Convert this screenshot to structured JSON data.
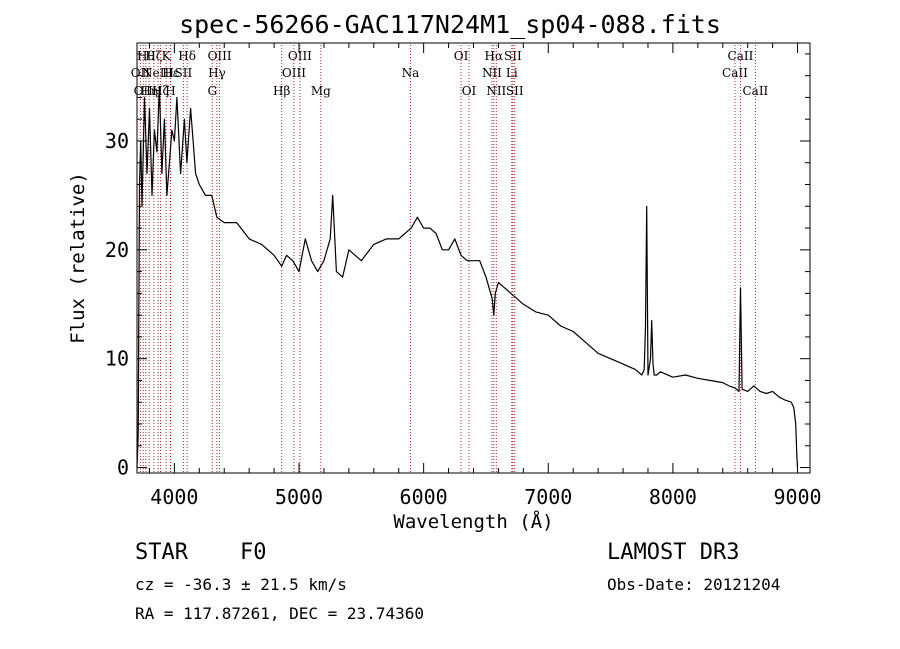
{
  "title": "spec-56266-GAC117N24M1_sp04-088.fits",
  "chart_data": {
    "type": "line",
    "title": "spec-56266-GAC117N24M1_sp04-088.fits",
    "xlabel": "Wavelength (Å)",
    "ylabel": "Flux (relative)",
    "xlim": [
      3700,
      9100
    ],
    "ylim": [
      -0.5,
      39
    ],
    "x_ticks": [
      4000,
      5000,
      6000,
      7000,
      8000,
      9000
    ],
    "y_ticks": [
      0,
      10,
      20,
      30
    ],
    "series": [
      {
        "name": "spectrum",
        "color": "#000000",
        "x": [
          3700,
          3710,
          3720,
          3730,
          3740,
          3760,
          3780,
          3800,
          3820,
          3840,
          3860,
          3880,
          3900,
          3920,
          3940,
          3960,
          3980,
          4000,
          4020,
          4050,
          4080,
          4100,
          4130,
          4170,
          4200,
          4250,
          4300,
          4340,
          4400,
          4500,
          4600,
          4700,
          4800,
          4861,
          4900,
          4950,
          5000,
          5050,
          5100,
          5150,
          5200,
          5250,
          5270,
          5300,
          5350,
          5400,
          5500,
          5600,
          5700,
          5800,
          5900,
          5950,
          6000,
          6050,
          6100,
          6150,
          6200,
          6250,
          6300,
          6350,
          6400,
          6450,
          6500,
          6550,
          6563,
          6575,
          6600,
          6650,
          6700,
          6750,
          6800,
          6900,
          7000,
          7100,
          7200,
          7300,
          7400,
          7500,
          7600,
          7700,
          7750,
          7770,
          7780,
          7790,
          7800,
          7820,
          7830,
          7840,
          7850,
          7870,
          7900,
          8000,
          8100,
          8200,
          8300,
          8400,
          8450,
          8500,
          8530,
          8542,
          8555,
          8600,
          8650,
          8700,
          8750,
          8800,
          8850,
          8900,
          8950,
          8970,
          8985,
          8995,
          9000
        ],
        "y": [
          0,
          3,
          26,
          30,
          24,
          34,
          27,
          33,
          25,
          31,
          29,
          35,
          27,
          32,
          25,
          28,
          31,
          30,
          34,
          27,
          32,
          28,
          33,
          27,
          26,
          25,
          25,
          23,
          22.5,
          22.5,
          21,
          20.5,
          19.5,
          18.5,
          19.5,
          19,
          18,
          21,
          19,
          18,
          19,
          21,
          25,
          18,
          17.5,
          20,
          19,
          20.5,
          21,
          21,
          22,
          23,
          22,
          22,
          21.5,
          20,
          20,
          21,
          19.5,
          19,
          19,
          19,
          17.5,
          15.5,
          14,
          16,
          17,
          16.5,
          16,
          15.5,
          15,
          14.3,
          14,
          13,
          12.5,
          11.5,
          10.5,
          10,
          9.5,
          9,
          8.5,
          9,
          13,
          24,
          8.5,
          10,
          13.5,
          9.5,
          8.5,
          8.5,
          8.8,
          8.3,
          8.5,
          8.2,
          8,
          7.8,
          7.5,
          7.3,
          7,
          16.5,
          7.2,
          7,
          7.5,
          7,
          6.8,
          7,
          6.5,
          6.2,
          6,
          5.5,
          4,
          1,
          0
        ]
      }
    ],
    "line_markers": [
      {
        "wave": 3727,
        "label": "OII",
        "row": 2
      },
      {
        "wave": 3750,
        "label": "OII",
        "row": 3
      },
      {
        "wave": 3771,
        "label": "Hθ",
        "row": 1
      },
      {
        "wave": 3798,
        "label": "Hη",
        "row": 3
      },
      {
        "wave": 3835,
        "label": "Hζ",
        "row": 1
      },
      {
        "wave": 3869,
        "label": "NeIII",
        "row": 2
      },
      {
        "wave": 3889,
        "label": "Hζ",
        "row": 3
      },
      {
        "wave": 3934,
        "label": "K",
        "row": 1
      },
      {
        "wave": 3969,
        "label": "H",
        "row": 3
      },
      {
        "wave": 3970,
        "label": "Hε",
        "row": 2
      },
      {
        "wave": 4072,
        "label": "SII",
        "row": 2
      },
      {
        "wave": 4102,
        "label": "Hδ",
        "row": 1
      },
      {
        "wave": 4304,
        "label": "G",
        "row": 3
      },
      {
        "wave": 4341,
        "label": "Hγ",
        "row": 2
      },
      {
        "wave": 4363,
        "label": "OIII",
        "row": 1
      },
      {
        "wave": 4861,
        "label": "Hβ",
        "row": 3
      },
      {
        "wave": 4959,
        "label": "OIII",
        "row": 2
      },
      {
        "wave": 5007,
        "label": "OIII",
        "row": 1
      },
      {
        "wave": 5175,
        "label": "Mg",
        "row": 3
      },
      {
        "wave": 5894,
        "label": "Na",
        "row": 2
      },
      {
        "wave": 6300,
        "label": "OI",
        "row": 1
      },
      {
        "wave": 6364,
        "label": "OI",
        "row": 3
      },
      {
        "wave": 6548,
        "label": "NII",
        "row": 2
      },
      {
        "wave": 6563,
        "label": "Hα",
        "row": 1
      },
      {
        "wave": 6583,
        "label": "NII",
        "row": 3
      },
      {
        "wave": 6707,
        "label": "Li",
        "row": 2
      },
      {
        "wave": 6716,
        "label": "SII",
        "row": 1
      },
      {
        "wave": 6731,
        "label": "SII",
        "row": 3
      },
      {
        "wave": 8498,
        "label": "CaII",
        "row": 2
      },
      {
        "wave": 8542,
        "label": "CaII",
        "row": 1
      },
      {
        "wave": 8662,
        "label": "CaII",
        "row": 3
      }
    ]
  },
  "info": {
    "class_label": "STAR",
    "subclass": "F0",
    "survey": "LAMOST DR3",
    "cz": "cz = -36.3 ± 21.5 km/s",
    "obs_date": "Obs-Date: 20121204",
    "coords": "RA = 117.87261, DEC =  23.74360"
  }
}
